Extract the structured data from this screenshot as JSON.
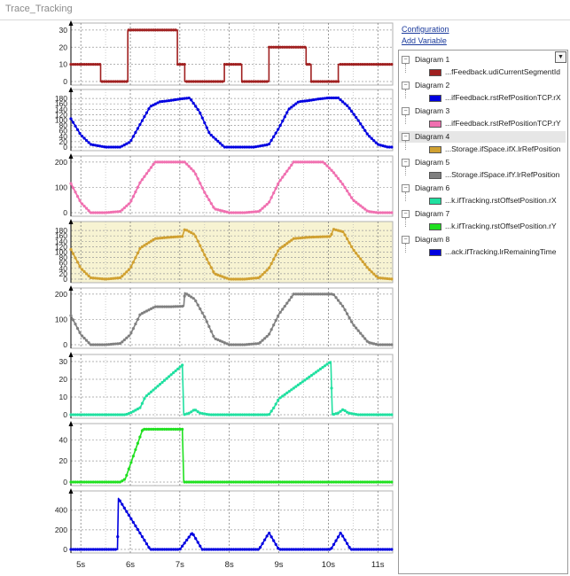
{
  "window": {
    "title": "Trace_Tracking"
  },
  "links": {
    "configuration": "Configuration",
    "add_variable": "Add Variable"
  },
  "diagrams": [
    {
      "name": "Diagram 1",
      "variable": "...fFeedback.udiCurrentSegmentId",
      "color": "#a02020"
    },
    {
      "name": "Diagram 2",
      "variable": "...ifFeedback.rstRefPositionTCP.rX",
      "color": "#0000e0"
    },
    {
      "name": "Diagram 3",
      "variable": "...ifFeedback.rstRefPositionTCP.rY",
      "color": "#f070b0"
    },
    {
      "name": "Diagram 4",
      "variable": "...Storage.ifSpace.ifX.lrRefPosition",
      "color": "#d0a030"
    },
    {
      "name": "Diagram 5",
      "variable": "...Storage.ifSpace.ifY.lrRefPosition",
      "color": "#808080"
    },
    {
      "name": "Diagram 6",
      "variable": "...k.ifTracking.rstOffsetPosition.rX",
      "color": "#20e0a0"
    },
    {
      "name": "Diagram 7",
      "variable": "...k.ifTracking.rstOffsetPosition.rY",
      "color": "#20e020"
    },
    {
      "name": "Diagram 8",
      "variable": "...ack.ifTracking.lrRemainingTime",
      "color": "#0000e0"
    }
  ],
  "tree_dropdown_icon": "chevron-down-icon",
  "x_axis": {
    "min": 4.8,
    "max": 11.3,
    "ticks": [
      "5s",
      "6s",
      "7s",
      "8s",
      "9s",
      "10s",
      "11s"
    ],
    "tick_values": [
      5,
      6,
      7,
      8,
      9,
      10,
      11
    ]
  },
  "chart_data": [
    {
      "type": "line",
      "name": "Diagram 1",
      "ylim": [
        0,
        32
      ],
      "yticks": [
        0,
        10,
        20,
        30
      ],
      "x": [
        4.8,
        5.4,
        5.4,
        5.95,
        5.95,
        6.95,
        6.95,
        7.1,
        7.1,
        7.9,
        7.9,
        8.25,
        8.25,
        8.8,
        8.8,
        9.55,
        9.55,
        9.65,
        9.65,
        10.2,
        10.2,
        11.3
      ],
      "values": [
        10,
        10,
        0,
        0,
        30,
        30,
        10,
        10,
        0,
        0,
        10,
        10,
        0,
        0,
        20,
        20,
        10,
        10,
        0,
        0,
        10,
        10
      ]
    },
    {
      "type": "line",
      "name": "Diagram 2",
      "ylim": [
        0,
        200
      ],
      "yticks": [
        0,
        20,
        40,
        60,
        80,
        100,
        120,
        140,
        160,
        180
      ],
      "x": [
        4.8,
        5.0,
        5.2,
        5.5,
        5.8,
        6.0,
        6.2,
        6.4,
        6.6,
        6.8,
        7.0,
        7.2,
        7.4,
        7.6,
        7.9,
        8.2,
        8.5,
        8.8,
        9.0,
        9.2,
        9.4,
        9.6,
        9.8,
        10.0,
        10.2,
        10.4,
        10.6,
        10.8,
        11.0,
        11.2,
        11.3
      ],
      "values": [
        105,
        45,
        10,
        0,
        0,
        20,
        85,
        150,
        168,
        172,
        178,
        182,
        130,
        50,
        0,
        0,
        0,
        10,
        70,
        140,
        168,
        172,
        178,
        182,
        182,
        150,
        100,
        45,
        10,
        0,
        0
      ]
    },
    {
      "type": "line",
      "name": "Diagram 3",
      "ylim": [
        0,
        210
      ],
      "yticks": [
        0,
        100,
        200
      ],
      "x": [
        4.8,
        5.0,
        5.2,
        5.5,
        5.8,
        6.0,
        6.2,
        6.5,
        6.8,
        7.1,
        7.3,
        7.5,
        7.7,
        8.0,
        8.3,
        8.6,
        8.8,
        9.0,
        9.3,
        9.6,
        9.9,
        10.1,
        10.3,
        10.5,
        10.8,
        11.0,
        11.3
      ],
      "values": [
        115,
        40,
        0,
        0,
        5,
        40,
        120,
        200,
        200,
        200,
        160,
        80,
        15,
        0,
        0,
        5,
        40,
        120,
        200,
        200,
        200,
        160,
        110,
        50,
        5,
        0,
        0
      ]
    },
    {
      "type": "line",
      "name": "Diagram 4",
      "ylim": [
        0,
        200
      ],
      "yticks": [
        0,
        20,
        40,
        60,
        80,
        100,
        120,
        140,
        160,
        180
      ],
      "x": [
        4.8,
        5.0,
        5.2,
        5.5,
        5.8,
        6.0,
        6.2,
        6.5,
        6.8,
        7.05,
        7.1,
        7.3,
        7.5,
        7.7,
        8.0,
        8.3,
        8.6,
        8.8,
        9.0,
        9.3,
        9.6,
        10.05,
        10.1,
        10.3,
        10.5,
        10.8,
        11.0,
        11.3
      ],
      "values": [
        110,
        40,
        5,
        0,
        5,
        40,
        115,
        150,
        155,
        158,
        185,
        165,
        90,
        20,
        0,
        0,
        5,
        40,
        110,
        150,
        155,
        158,
        185,
        175,
        110,
        40,
        5,
        0
      ]
    },
    {
      "type": "line",
      "name": "Diagram 5",
      "ylim": [
        0,
        210
      ],
      "yticks": [
        0,
        100,
        200
      ],
      "x": [
        4.8,
        5.0,
        5.2,
        5.5,
        5.8,
        6.0,
        6.2,
        6.5,
        6.8,
        7.08,
        7.1,
        7.3,
        7.5,
        7.7,
        8.0,
        8.3,
        8.6,
        8.8,
        9.0,
        9.3,
        9.6,
        9.9,
        10.1,
        10.3,
        10.5,
        10.8,
        11.0,
        11.3
      ],
      "values": [
        115,
        40,
        0,
        0,
        5,
        40,
        120,
        150,
        150,
        152,
        205,
        180,
        110,
        25,
        0,
        0,
        5,
        40,
        120,
        200,
        200,
        200,
        200,
        150,
        80,
        10,
        0,
        0
      ]
    },
    {
      "type": "line",
      "name": "Diagram 6",
      "ylim": [
        0,
        32
      ],
      "yticks": [
        0,
        10,
        20,
        30
      ],
      "x": [
        4.8,
        5.9,
        6.0,
        6.2,
        6.3,
        7.05,
        7.08,
        7.2,
        7.3,
        7.4,
        7.6,
        8.8,
        8.9,
        9.0,
        10.05,
        10.08,
        10.2,
        10.3,
        10.4,
        10.6,
        11.3
      ],
      "values": [
        0,
        0,
        1,
        4,
        10,
        28,
        0,
        1,
        3,
        1,
        0,
        0,
        4,
        9,
        30,
        0,
        1,
        3,
        1,
        0,
        0
      ]
    },
    {
      "type": "line",
      "name": "Diagram 7",
      "ylim": [
        0,
        52
      ],
      "yticks": [
        0,
        20,
        40
      ],
      "x": [
        4.8,
        5.8,
        5.9,
        6.1,
        6.25,
        7.05,
        7.08,
        11.3
      ],
      "values": [
        0,
        0,
        3,
        30,
        50,
        50,
        0,
        0
      ]
    },
    {
      "type": "line",
      "name": "Diagram 8",
      "ylim": [
        0,
        560
      ],
      "yticks": [
        0,
        200,
        400
      ],
      "x": [
        4.8,
        5.5,
        5.74,
        5.76,
        6.4,
        7.0,
        7.25,
        7.45,
        8.6,
        8.8,
        9.0,
        10.05,
        10.25,
        10.45,
        11.3
      ],
      "values": [
        0,
        0,
        0,
        520,
        0,
        0,
        170,
        0,
        0,
        170,
        0,
        0,
        170,
        0,
        0
      ]
    }
  ]
}
